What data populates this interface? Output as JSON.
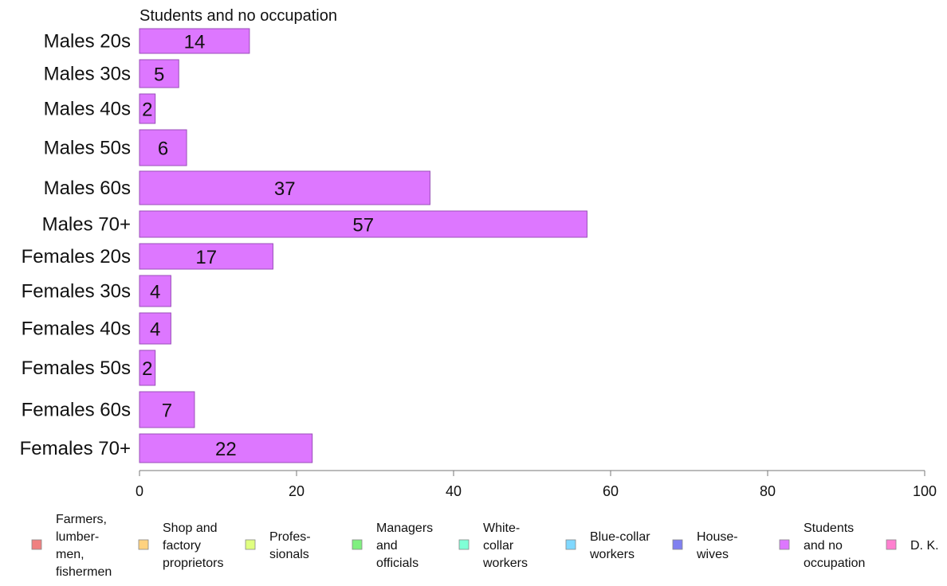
{
  "chart_data": {
    "type": "bar",
    "orientation": "horizontal",
    "title": "Students and no occupation",
    "categories": [
      "Males 20s",
      "Males 30s",
      "Males 40s",
      "Males 50s",
      "Males 60s",
      "Males 70+",
      "Females 20s",
      "Females 30s",
      "Females 40s",
      "Females 50s",
      "Females 60s",
      "Females 70+"
    ],
    "values": [
      14,
      5,
      2,
      6,
      37,
      57,
      17,
      4,
      4,
      2,
      7,
      22
    ],
    "xlim": [
      0,
      100
    ],
    "xticks": [
      0,
      20,
      40,
      60,
      80,
      100
    ],
    "xlabel": "",
    "ylabel": "",
    "grid": false,
    "legend_placement": "bottom",
    "bar_color": "#dd77ff",
    "legend": [
      {
        "label": "Farmers, lumber- men, fishermen",
        "lines": [
          "Farmers,",
          "lumber-",
          "men,",
          "fishermen"
        ],
        "color": "#f08080"
      },
      {
        "label": "Shop and factory proprietors",
        "lines": [
          "Shop and",
          "factory",
          "proprietors"
        ],
        "color": "#ffd27f"
      },
      {
        "label": "Profes- sionals",
        "lines": [
          "Profes-",
          "sionals"
        ],
        "color": "#e0ff80"
      },
      {
        "label": "Managers and officials",
        "lines": [
          "Managers",
          "and",
          "officials"
        ],
        "color": "#80f080"
      },
      {
        "label": "White- collar workers",
        "lines": [
          "White-",
          "collar",
          "workers"
        ],
        "color": "#80ffd6"
      },
      {
        "label": "Blue-collar workers",
        "lines": [
          "Blue-collar",
          "workers"
        ],
        "color": "#80d8ff"
      },
      {
        "label": "House- wives",
        "lines": [
          "House-",
          "wives"
        ],
        "color": "#8080f0"
      },
      {
        "label": "Students and no occupation",
        "lines": [
          "Students",
          "and no",
          "occupation"
        ],
        "color": "#dd77ff"
      },
      {
        "label": "D. K.",
        "lines": [
          "D. K."
        ],
        "color": "#ff80d0"
      }
    ]
  }
}
